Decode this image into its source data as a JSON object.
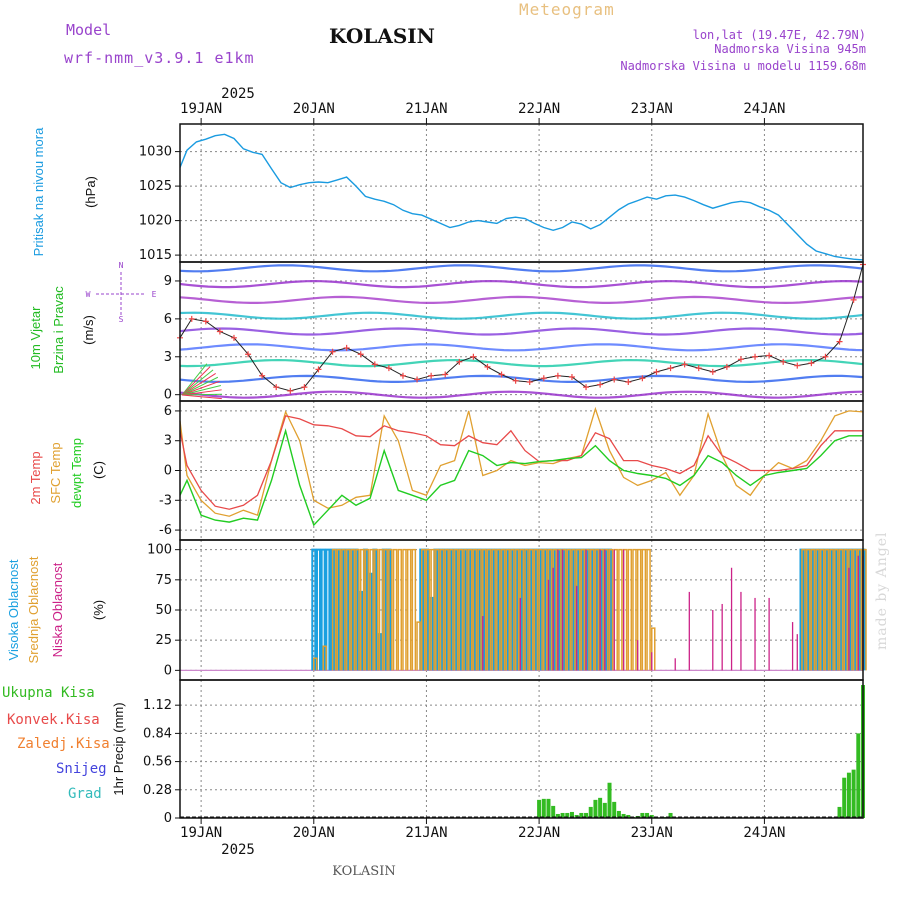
{
  "header": {
    "model_label": "Model",
    "model_name": "wrf-nmm_v3.9.1 e1km",
    "station": "KOLASIN",
    "meteogram": "Meteogram",
    "lonlat": "lon,lat (19.47E, 42.79N)",
    "altitude": "Nadmorska Visina 945m",
    "model_altitude": "Nadmorska Visina u modelu 1159.68m",
    "footer_station": "KOLASIN",
    "watermark": "made by Angel"
  },
  "colors": {
    "pressure": "#1a9be0",
    "t2m": "#e84a4a",
    "sfc": "#e0a030",
    "dew": "#22cc22",
    "high_cloud": "#1aa0e0",
    "mid_cloud": "#e0a030",
    "low_cloud": "#cc2288",
    "precip": "#33bb22",
    "wind_title": "#22bb22",
    "purple": "#9944cc"
  },
  "time_axis": {
    "top_year": "2025",
    "bottom_year": "2025",
    "days": [
      "19JAN",
      "20JAN",
      "21JAN",
      "22JAN",
      "23JAN",
      "24JAN"
    ]
  },
  "panels": {
    "pressure": {
      "title": "Pritisak na nivou mora",
      "unit": "(hPa)",
      "ticks": [
        "1015",
        "1020",
        "1025",
        "1030"
      ]
    },
    "wind": {
      "title_1": "10m Vjetar",
      "title_2": "Brzina i Pravac",
      "unit": "(m/s)",
      "compass_n": "N",
      "compass_s": "S",
      "compass_w": "W",
      "compass_e": "E",
      "ticks": [
        "0",
        "3",
        "6",
        "9"
      ]
    },
    "temp": {
      "title_1": "2m Temp",
      "title_2": "SFC Temp",
      "title_3": "dewpt Temp",
      "unit": "(C)",
      "ticks": [
        "-6",
        "-3",
        "0",
        "3",
        "6"
      ]
    },
    "cloud": {
      "title_1": "Visoka Oblacnost",
      "title_2": "Srednja Oblacnost",
      "title_3": "Niska Oblacnost",
      "unit": "(%)",
      "ticks": [
        "0",
        "25",
        "50",
        "75",
        "100"
      ]
    },
    "precip": {
      "legend": [
        "Ukupna Kisa",
        "Konvek.Kisa",
        "Zaledj.Kisa",
        "Snijeg",
        "Grad"
      ],
      "legend_colors": [
        "#33bb22",
        "#e84a4a",
        "#f08030",
        "#4444dd",
        "#33bbbb"
      ],
      "unit": "1hr Precip (mm)",
      "ticks": [
        "0",
        "0.28",
        "0.56",
        "0.84",
        "1.12"
      ]
    }
  },
  "chart_data": [
    {
      "type": "line",
      "title": "Pritisak na nivou mora",
      "ylabel": "(hPa)",
      "ylim": [
        1014,
        1034
      ],
      "x_unit": "hours since 19JAN 00UTC, start -4.5h",
      "x": [
        -4.5,
        -3,
        -1,
        1,
        3,
        5,
        7,
        9,
        11,
        13,
        15,
        17,
        19,
        21,
        23,
        25,
        27,
        29,
        31,
        33,
        35,
        37,
        39,
        41,
        43,
        45,
        47,
        49,
        51,
        53,
        55,
        57,
        59,
        61,
        63,
        65,
        67,
        69,
        71,
        73,
        75,
        77,
        79,
        81,
        83,
        85,
        87,
        89,
        91,
        93,
        95,
        97,
        99,
        101,
        103,
        105,
        107,
        109,
        111,
        113,
        115,
        117,
        119,
        121,
        123,
        125,
        127,
        129,
        131,
        133,
        135,
        137,
        139,
        141
      ],
      "values": [
        1027.7,
        1030.2,
        1031.4,
        1031.8,
        1032.3,
        1032.5,
        1031.9,
        1030.4,
        1029.9,
        1029.6,
        1027.5,
        1025.5,
        1024.8,
        1025.2,
        1025.5,
        1025.6,
        1025.5,
        1025.9,
        1026.3,
        1025.0,
        1023.5,
        1023.1,
        1022.8,
        1022.3,
        1021.5,
        1021.0,
        1020.8,
        1020.2,
        1019.6,
        1019.0,
        1019.3,
        1019.8,
        1020.0,
        1019.8,
        1019.6,
        1020.3,
        1020.5,
        1020.3,
        1019.6,
        1019.0,
        1018.6,
        1019.0,
        1019.8,
        1019.5,
        1018.8,
        1019.4,
        1020.5,
        1021.6,
        1022.4,
        1022.9,
        1023.4,
        1023.1,
        1023.6,
        1023.7,
        1023.4,
        1022.9,
        1022.3,
        1021.8,
        1022.2,
        1022.6,
        1022.8,
        1022.6,
        1022.0,
        1021.5,
        1020.8,
        1019.4,
        1018.0,
        1016.6,
        1015.6,
        1015.2,
        1014.8,
        1014.6,
        1014.4,
        1014.3
      ]
    },
    {
      "type": "line",
      "title": "10m Vjetar Brzina i Pravac",
      "ylabel": "(m/s)",
      "ylim": [
        -0.5,
        10.5
      ],
      "x": [
        -4.5,
        -2,
        1,
        4,
        7,
        10,
        13,
        16,
        19,
        22,
        25,
        28,
        31,
        34,
        37,
        40,
        43,
        46,
        49,
        52,
        55,
        58,
        61,
        64,
        67,
        70,
        73,
        76,
        79,
        82,
        85,
        88,
        91,
        94,
        97,
        100,
        103,
        106,
        109,
        112,
        115,
        118,
        121,
        124,
        127,
        130,
        133,
        136,
        139,
        141
      ],
      "values": [
        4.5,
        6.0,
        5.8,
        5.0,
        4.5,
        3.2,
        1.5,
        0.6,
        0.3,
        0.6,
        2.0,
        3.4,
        3.7,
        3.2,
        2.4,
        2.1,
        1.5,
        1.2,
        1.5,
        1.6,
        2.6,
        3.0,
        2.2,
        1.6,
        1.1,
        1.0,
        1.3,
        1.5,
        1.4,
        0.6,
        0.8,
        1.2,
        1.0,
        1.3,
        1.8,
        2.1,
        2.4,
        2.1,
        1.8,
        2.2,
        2.8,
        3.0,
        3.1,
        2.6,
        2.3,
        2.5,
        3.0,
        4.2,
        7.5,
        10.3
      ]
    },
    {
      "type": "line",
      "title": "2m Temp / SFC Temp / dewpt Temp",
      "ylabel": "(C)",
      "ylim": [
        -7,
        7
      ],
      "series": [
        {
          "name": "2m Temp",
          "x": [
            -4.5,
            -3,
            0,
            3,
            6,
            9,
            12,
            15,
            18,
            21,
            24,
            27,
            30,
            33,
            36,
            39,
            42,
            45,
            48,
            51,
            54,
            57,
            60,
            63,
            66,
            69,
            72,
            75,
            78,
            81,
            84,
            87,
            90,
            93,
            96,
            99,
            102,
            105,
            108,
            111,
            114,
            117,
            120,
            123,
            126,
            129,
            132,
            135,
            138,
            141
          ],
          "values": [
            4.0,
            0.5,
            -2.0,
            -3.6,
            -3.9,
            -3.5,
            -2.5,
            1.0,
            5.5,
            5.2,
            4.6,
            4.5,
            4.2,
            3.5,
            3.4,
            4.5,
            4.0,
            3.8,
            3.5,
            2.6,
            2.5,
            3.5,
            2.8,
            2.6,
            4.0,
            2.0,
            0.9,
            1.0,
            1.0,
            1.5,
            3.8,
            3.2,
            1.0,
            1.0,
            0.5,
            0.2,
            -0.3,
            0.5,
            3.5,
            1.5,
            0.8,
            0.0,
            0.0,
            0.0,
            0.2,
            0.5,
            2.5,
            4.0,
            4.0,
            4.0
          ]
        },
        {
          "name": "SFC Temp",
          "x": [
            -4.5,
            -3,
            0,
            3,
            6,
            9,
            12,
            15,
            18,
            21,
            24,
            27,
            30,
            33,
            36,
            39,
            42,
            45,
            48,
            51,
            54,
            57,
            60,
            63,
            66,
            69,
            72,
            75,
            78,
            81,
            84,
            87,
            90,
            93,
            96,
            99,
            102,
            105,
            108,
            111,
            114,
            117,
            120,
            123,
            126,
            129,
            132,
            135,
            138,
            141
          ],
          "values": [
            5.0,
            -0.5,
            -3.0,
            -4.3,
            -4.6,
            -4.0,
            -4.5,
            1.0,
            5.9,
            3.0,
            -3.0,
            -3.8,
            -3.5,
            -2.7,
            -2.5,
            5.5,
            3.0,
            -2.0,
            -2.5,
            0.5,
            1.0,
            6.0,
            -0.5,
            0.0,
            1.0,
            0.5,
            0.8,
            0.7,
            1.2,
            1.5,
            6.2,
            2.0,
            -0.7,
            -1.5,
            -1.0,
            -0.2,
            -2.5,
            -0.5,
            5.7,
            1.5,
            -1.5,
            -2.5,
            -0.5,
            0.8,
            0.2,
            1.0,
            3.0,
            5.5,
            6.0,
            5.9
          ]
        },
        {
          "name": "dewpt Temp",
          "x": [
            -4.5,
            -3,
            0,
            3,
            6,
            9,
            12,
            15,
            18,
            21,
            24,
            27,
            30,
            33,
            36,
            39,
            42,
            45,
            48,
            51,
            54,
            57,
            60,
            63,
            66,
            69,
            72,
            75,
            78,
            81,
            84,
            87,
            90,
            93,
            96,
            99,
            102,
            105,
            108,
            111,
            114,
            117,
            120,
            123,
            126,
            129,
            132,
            135,
            138,
            141
          ],
          "values": [
            -2.5,
            -1.0,
            -4.5,
            -5.0,
            -5.2,
            -4.8,
            -5.0,
            -1.0,
            4.0,
            -1.5,
            -5.5,
            -4.0,
            -2.5,
            -3.5,
            -2.8,
            2.0,
            -2.0,
            -2.5,
            -3.0,
            -1.5,
            -1.0,
            2.0,
            1.5,
            0.5,
            0.8,
            0.7,
            0.9,
            1.0,
            1.2,
            1.3,
            2.5,
            1.0,
            0.0,
            -0.3,
            -0.5,
            -0.8,
            -1.5,
            -0.5,
            1.5,
            0.8,
            -0.5,
            -1.5,
            -0.5,
            -0.2,
            0.0,
            0.2,
            1.5,
            3.0,
            3.5,
            3.5
          ]
        }
      ]
    },
    {
      "type": "bar",
      "title": "Visoka / Srednja / Niska Oblacnost",
      "ylabel": "(%)",
      "ylim": [
        -8,
        108
      ],
      "series": [
        {
          "name": "Visoka Oblacnost",
          "x": [
            24,
            25,
            26,
            27,
            28,
            29,
            30,
            31,
            32,
            33,
            34,
            35,
            36,
            37,
            38,
            39,
            40,
            47,
            48,
            49,
            50,
            51,
            52,
            53,
            54,
            55,
            56,
            57,
            58,
            59,
            60,
            61,
            62,
            63,
            64,
            65,
            66,
            67,
            68,
            69,
            70,
            71,
            72,
            73,
            74,
            75,
            76,
            77,
            78,
            79,
            80,
            81,
            82,
            83,
            84,
            85,
            86,
            87,
            128,
            129,
            130,
            131,
            132,
            133,
            134,
            135,
            136,
            137,
            138,
            139,
            140,
            141
          ],
          "values": [
            100,
            100,
            100,
            100,
            100,
            100,
            100,
            100,
            100,
            100,
            65,
            100,
            80,
            100,
            30,
            100,
            100,
            100,
            100,
            60,
            100,
            100,
            100,
            100,
            100,
            100,
            100,
            100,
            100,
            100,
            100,
            100,
            100,
            100,
            100,
            100,
            100,
            100,
            100,
            100,
            100,
            100,
            100,
            100,
            100,
            100,
            100,
            100,
            100,
            100,
            100,
            100,
            100,
            100,
            100,
            100,
            100,
            100,
            100,
            100,
            100,
            100,
            100,
            100,
            100,
            100,
            100,
            100,
            100,
            100,
            100,
            100
          ]
        },
        {
          "name": "Srednja Oblacnost",
          "x": [
            24,
            26,
            28,
            29,
            30,
            31,
            32,
            33,
            34,
            35,
            36,
            37,
            38,
            39,
            40,
            41,
            42,
            43,
            44,
            45,
            46,
            47,
            48,
            49,
            50,
            51,
            52,
            53,
            54,
            55,
            56,
            57,
            58,
            59,
            60,
            61,
            62,
            63,
            64,
            65,
            66,
            67,
            68,
            69,
            70,
            71,
            72,
            73,
            74,
            75,
            76,
            77,
            78,
            79,
            80,
            81,
            82,
            83,
            84,
            85,
            86,
            87,
            88,
            89,
            90,
            91,
            92,
            93,
            94,
            95,
            96,
            128,
            129,
            130,
            131,
            132,
            133,
            134,
            135,
            136,
            137,
            138,
            139,
            140,
            141
          ],
          "values": [
            10,
            20,
            100,
            100,
            100,
            100,
            100,
            100,
            100,
            100,
            100,
            100,
            100,
            100,
            100,
            100,
            100,
            100,
            100,
            100,
            40,
            100,
            100,
            100,
            100,
            100,
            100,
            100,
            100,
            100,
            100,
            100,
            100,
            100,
            100,
            100,
            100,
            100,
            100,
            100,
            100,
            100,
            100,
            100,
            100,
            100,
            100,
            100,
            100,
            100,
            100,
            100,
            100,
            100,
            100,
            100,
            100,
            100,
            100,
            100,
            100,
            100,
            100,
            100,
            100,
            100,
            100,
            100,
            100,
            100,
            35,
            100,
            100,
            100,
            100,
            100,
            100,
            100,
            100,
            100,
            100,
            100,
            100,
            100,
            100
          ]
        },
        {
          "name": "Niska Oblacnost",
          "x": [
            60,
            68,
            74,
            75,
            76,
            77,
            80,
            82,
            85,
            86,
            88,
            90,
            93,
            96,
            101,
            104,
            109,
            111,
            113,
            115,
            118,
            121,
            126,
            127,
            138,
            140,
            141
          ],
          "values": [
            45,
            60,
            75,
            85,
            100,
            100,
            70,
            100,
            100,
            100,
            100,
            100,
            25,
            15,
            10,
            65,
            50,
            55,
            85,
            65,
            60,
            60,
            40,
            30,
            85,
            95,
            95
          ]
        }
      ]
    },
    {
      "type": "bar",
      "title": "1hr Precip",
      "ylabel": "(mm)",
      "ylim": [
        0,
        1.37
      ],
      "series": [
        {
          "name": "Ukupna Kisa",
          "x": [
            72,
            73,
            74,
            75,
            76,
            77,
            78,
            79,
            80,
            81,
            82,
            83,
            84,
            85,
            86,
            87,
            88,
            89,
            90,
            91,
            92,
            93,
            94,
            95,
            96,
            99,
            100,
            136,
            137,
            138,
            139,
            140,
            141
          ],
          "values": [
            0.18,
            0.19,
            0.19,
            0.12,
            0.04,
            0.05,
            0.05,
            0.06,
            0.03,
            0.05,
            0.05,
            0.11,
            0.18,
            0.2,
            0.15,
            0.35,
            0.16,
            0.07,
            0.04,
            0.03,
            0.01,
            0.02,
            0.05,
            0.05,
            0.03,
            0.01,
            0.05,
            0.11,
            0.4,
            0.45,
            0.48,
            0.84,
            1.32
          ]
        }
      ]
    }
  ]
}
